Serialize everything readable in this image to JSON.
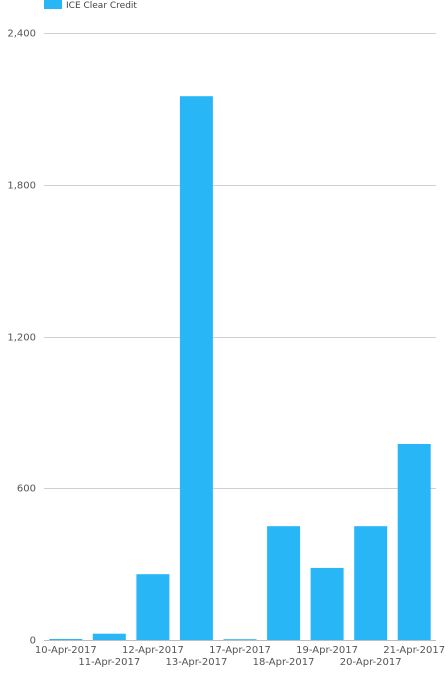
{
  "legend": {
    "label": "ICE Clear Credit"
  },
  "colors": {
    "bar": "#29b6f6",
    "grid": "#d0d0d0",
    "text": "#555555"
  },
  "chart_data": {
    "type": "bar",
    "title": "",
    "xlabel": "",
    "ylabel": "",
    "categories": [
      "10-Apr-2017",
      "11-Apr-2017",
      "12-Apr-2017",
      "13-Apr-2017",
      "17-Apr-2017",
      "18-Apr-2017",
      "19-Apr-2017",
      "20-Apr-2017",
      "21-Apr-2017"
    ],
    "series": [
      {
        "name": "ICE Clear Credit",
        "values": [
          4,
          25,
          260,
          2150,
          3,
          450,
          285,
          450,
          775
        ]
      }
    ],
    "ylim": [
      0,
      2400
    ],
    "yticks": [
      0,
      600,
      1200,
      1800,
      2400
    ],
    "ytick_labels": [
      "0",
      "600",
      "1,200",
      "1,800",
      "2,400"
    ],
    "grid": true,
    "legend_position": "top-left"
  }
}
